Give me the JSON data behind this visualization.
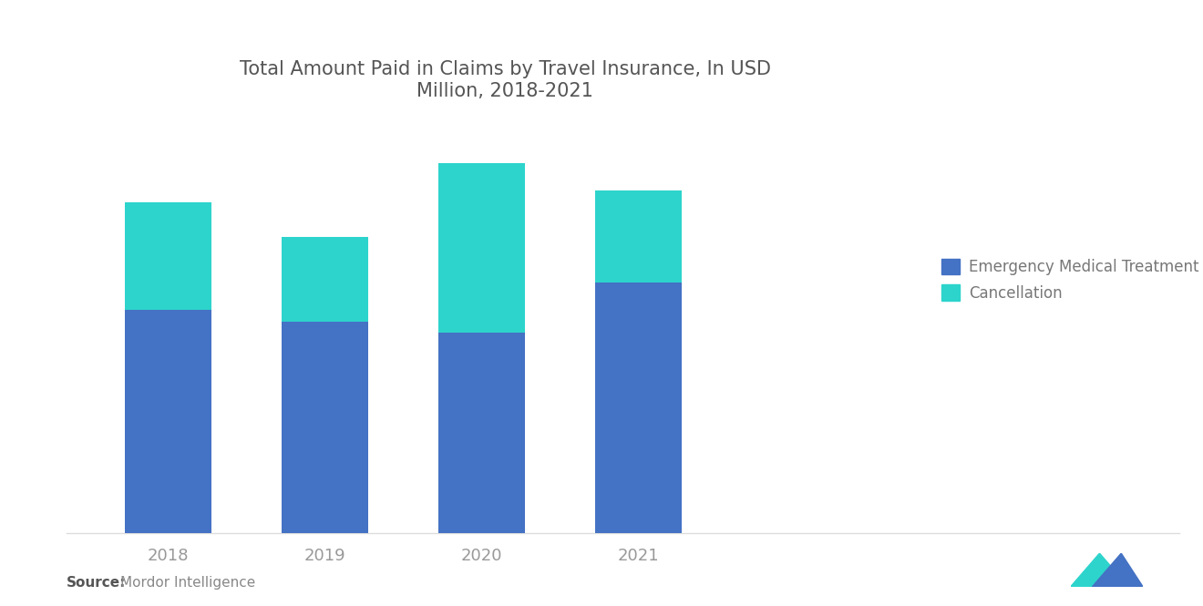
{
  "title": "Total Amount Paid in Claims by Travel Insurance, In USD\nMillion, 2018-2021",
  "years": [
    "2018",
    "2019",
    "2020",
    "2021"
  ],
  "emergency_medical": [
    58,
    55,
    52,
    65
  ],
  "cancellation": [
    28,
    22,
    44,
    24
  ],
  "color_emergency": "#4472C4",
  "color_cancellation": "#2DD4CC",
  "legend_labels": [
    "Emergency Medical Treatment",
    "Cancellation"
  ],
  "source_label": "Source:",
  "source_detail": "Mordor Intelligence",
  "background_color": "#FFFFFF",
  "title_fontsize": 15,
  "tick_fontsize": 13,
  "legend_fontsize": 12,
  "bar_width": 0.55,
  "title_color": "#555555",
  "tick_color": "#999999",
  "legend_color": "#777777"
}
